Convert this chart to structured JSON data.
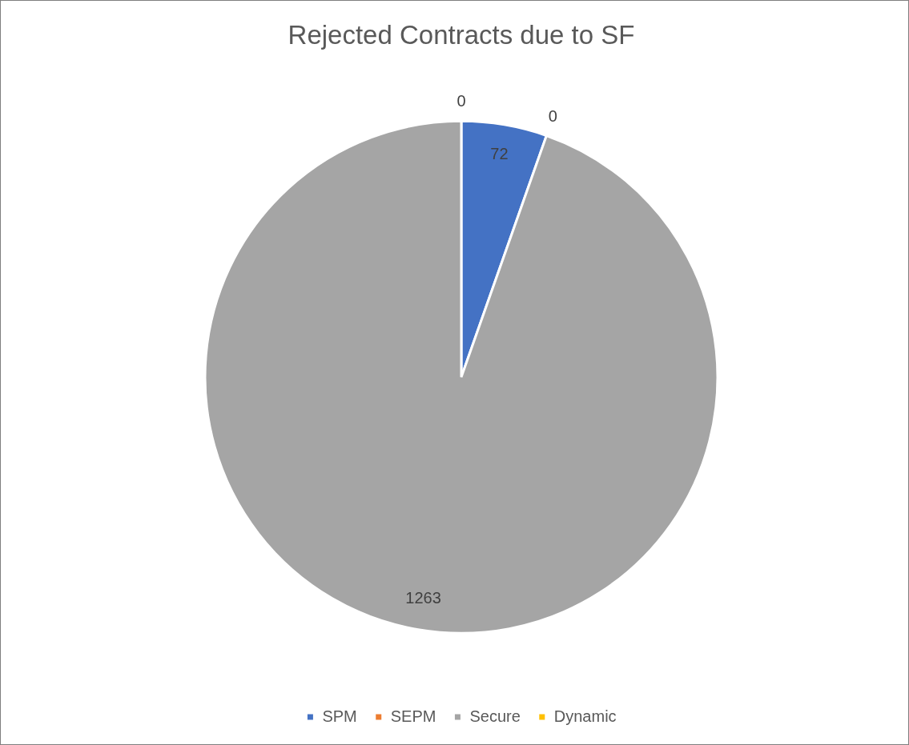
{
  "chart_data": {
    "type": "pie",
    "title": "Rejected Contracts due to SF",
    "categories": [
      "SPM",
      "SEPM",
      "Secure",
      "Dynamic"
    ],
    "values": [
      72,
      0,
      1263,
      0
    ],
    "value_labels": [
      "72",
      "0",
      "1263",
      "0"
    ],
    "colors": [
      "#4472c4",
      "#ed7d31",
      "#a5a5a5",
      "#ffc000"
    ],
    "legend": "bottom"
  }
}
